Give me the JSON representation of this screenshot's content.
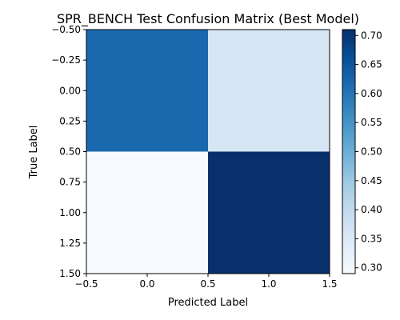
{
  "chart_data": {
    "type": "heatmap",
    "title": "SPR_BENCH Test Confusion Matrix (Best Model)",
    "xlabel": "Predicted Label",
    "ylabel": "True Label",
    "x_ticks": [
      "−0.5",
      "0.0",
      "0.5",
      "1.0",
      "1.5"
    ],
    "y_ticks": [
      "−0.50",
      "−0.25",
      "0.00",
      "0.25",
      "0.50",
      "0.75",
      "1.00",
      "1.25",
      "1.50"
    ],
    "x_tick_values": [
      -0.5,
      0.0,
      0.5,
      1.0,
      1.5
    ],
    "y_tick_values": [
      -0.5,
      -0.25,
      0.0,
      0.25,
      0.5,
      0.75,
      1.0,
      1.25,
      1.5
    ],
    "xlim": [
      -0.5,
      1.5
    ],
    "ylim": [
      1.5,
      -0.5
    ],
    "matrix": [
      [
        0.62,
        0.36
      ],
      [
        0.29,
        0.71
      ]
    ],
    "colorbar": {
      "colormap": "Blues",
      "range": [
        0.29,
        0.71
      ],
      "ticks": [
        "0.30",
        "0.35",
        "0.40",
        "0.45",
        "0.50",
        "0.55",
        "0.60",
        "0.65",
        "0.70"
      ],
      "tick_values": [
        0.3,
        0.35,
        0.4,
        0.45,
        0.5,
        0.55,
        0.6,
        0.65,
        0.7
      ]
    },
    "grid": false
  }
}
